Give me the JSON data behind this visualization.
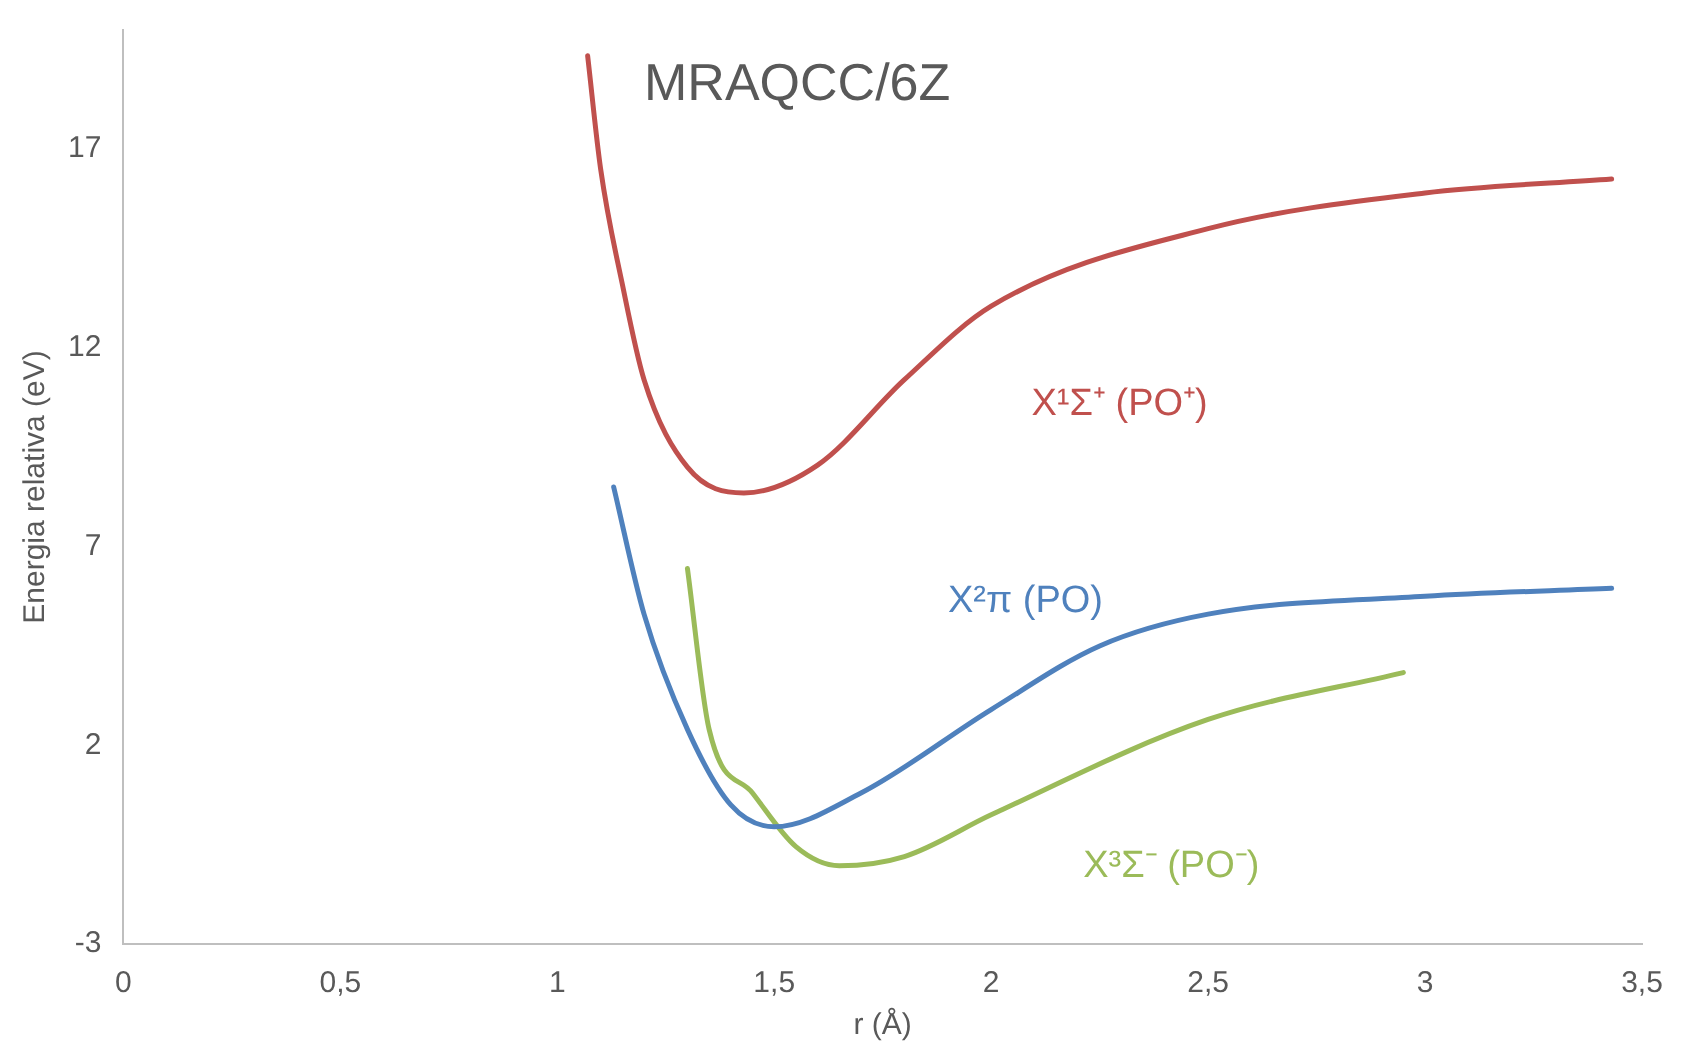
{
  "chart_data": {
    "type": "line",
    "title": "MRAQCC/6Z",
    "xlabel": "r (Å)",
    "ylabel": "Energia relativa (eV)",
    "xlim": [
      0,
      3.5
    ],
    "xticks": [
      0,
      {
        "value": 0.5,
        "label": "0,5"
      },
      1,
      {
        "value": 1.5,
        "label": "1,5"
      },
      2,
      {
        "value": 2.5,
        "label": "2,5"
      },
      3,
      {
        "value": 3.5,
        "label": "3,5"
      }
    ],
    "ylim": [
      -3,
      20
    ],
    "yticks": [
      -3,
      2,
      7,
      12,
      17
    ],
    "grid": false,
    "legend": false,
    "marker": "none",
    "line_style": "solid",
    "series": [
      {
        "name": "X¹Σ⁺ (PO⁺)",
        "color": "#c0504d",
        "x": [
          1.07,
          1.1,
          1.15,
          1.2,
          1.3,
          1.43,
          1.6,
          1.8,
          2.0,
          2.5,
          3.0,
          3.43
        ],
        "values": [
          19.35,
          16.5,
          13.6,
          11.2,
          9.0,
          8.35,
          9.05,
          11.2,
          13.05,
          15.0,
          15.9,
          16.25
        ]
      },
      {
        "name": "X²π (PO)",
        "color": "#4f81bd",
        "x": [
          1.13,
          1.2,
          1.3,
          1.4,
          1.5,
          1.7,
          2.0,
          2.25,
          2.5,
          3.0,
          3.43
        ],
        "values": [
          8.5,
          5.3,
          2.4,
          0.5,
          -0.05,
          0.8,
          2.9,
          4.5,
          5.3,
          5.75,
          5.95
        ]
      },
      {
        "name": "X³Σ⁻ (PO⁻)",
        "color": "#9bbb59",
        "x": [
          1.3,
          1.35,
          1.45,
          1.55,
          1.65,
          1.8,
          2.0,
          2.5,
          2.95
        ],
        "values": [
          6.45,
          2.4,
          0.8,
          -0.55,
          -1.03,
          -0.8,
          0.25,
          2.65,
          3.83
        ]
      }
    ]
  }
}
